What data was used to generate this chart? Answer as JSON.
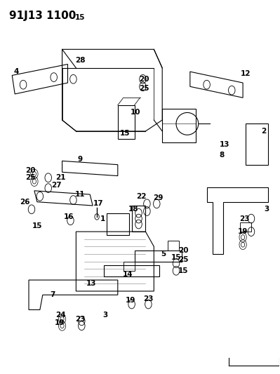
{
  "title": "91J13 1100",
  "bg_color": "#ffffff",
  "line_color": "#000000",
  "title_fontsize": 11,
  "label_fontsize": 7.5
}
